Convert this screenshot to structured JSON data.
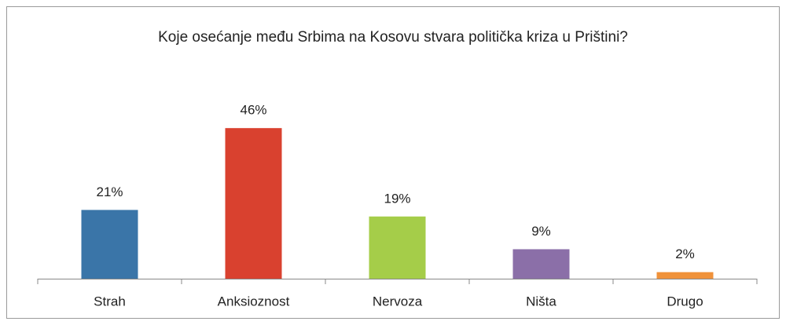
{
  "chart_data": {
    "type": "bar",
    "title": "Koje osećanje među Srbima na Kosovu stvara politička kriza u Prištini?",
    "categories": [
      "Strah",
      "Anksioznost",
      "Nervoza",
      "Ništa",
      "Drugo"
    ],
    "values": [
      21,
      46,
      19,
      9,
      2
    ],
    "value_labels": [
      "21%",
      "46%",
      "19%",
      "9%",
      "2%"
    ],
    "colors": [
      "#3a75a8",
      "#d9412f",
      "#a5cd49",
      "#8b6fa8",
      "#f0923a"
    ]
  }
}
